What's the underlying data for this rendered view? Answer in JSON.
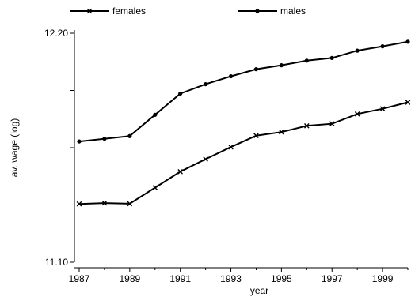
{
  "chart_data": {
    "type": "line",
    "xlabel": "year",
    "ylabel": "av. wage (log)",
    "xlim": [
      1987,
      2000
    ],
    "ylim": [
      11.1,
      12.2
    ],
    "x_ticks": [
      1987,
      1989,
      1991,
      1993,
      1995,
      1997,
      1999
    ],
    "y_ticks": [
      11.1,
      12.2
    ],
    "y_tick_labels": [
      "11.10",
      "12.20"
    ],
    "legend_position": "top",
    "grid": false,
    "x": [
      1987,
      1988,
      1989,
      1990,
      1991,
      1992,
      1993,
      1994,
      1995,
      1996,
      1997,
      1998,
      1999,
      2000
    ],
    "series": [
      {
        "name": "females",
        "marker": "x",
        "values": [
          11.38,
          11.384,
          11.381,
          11.458,
          11.535,
          11.595,
          11.653,
          11.708,
          11.725,
          11.755,
          11.765,
          11.812,
          11.837,
          11.868
        ]
      },
      {
        "name": "males",
        "marker": "dot",
        "values": [
          11.68,
          11.693,
          11.706,
          11.808,
          11.91,
          11.955,
          11.993,
          12.027,
          12.046,
          12.068,
          12.081,
          12.116,
          12.137,
          12.159
        ]
      }
    ]
  }
}
